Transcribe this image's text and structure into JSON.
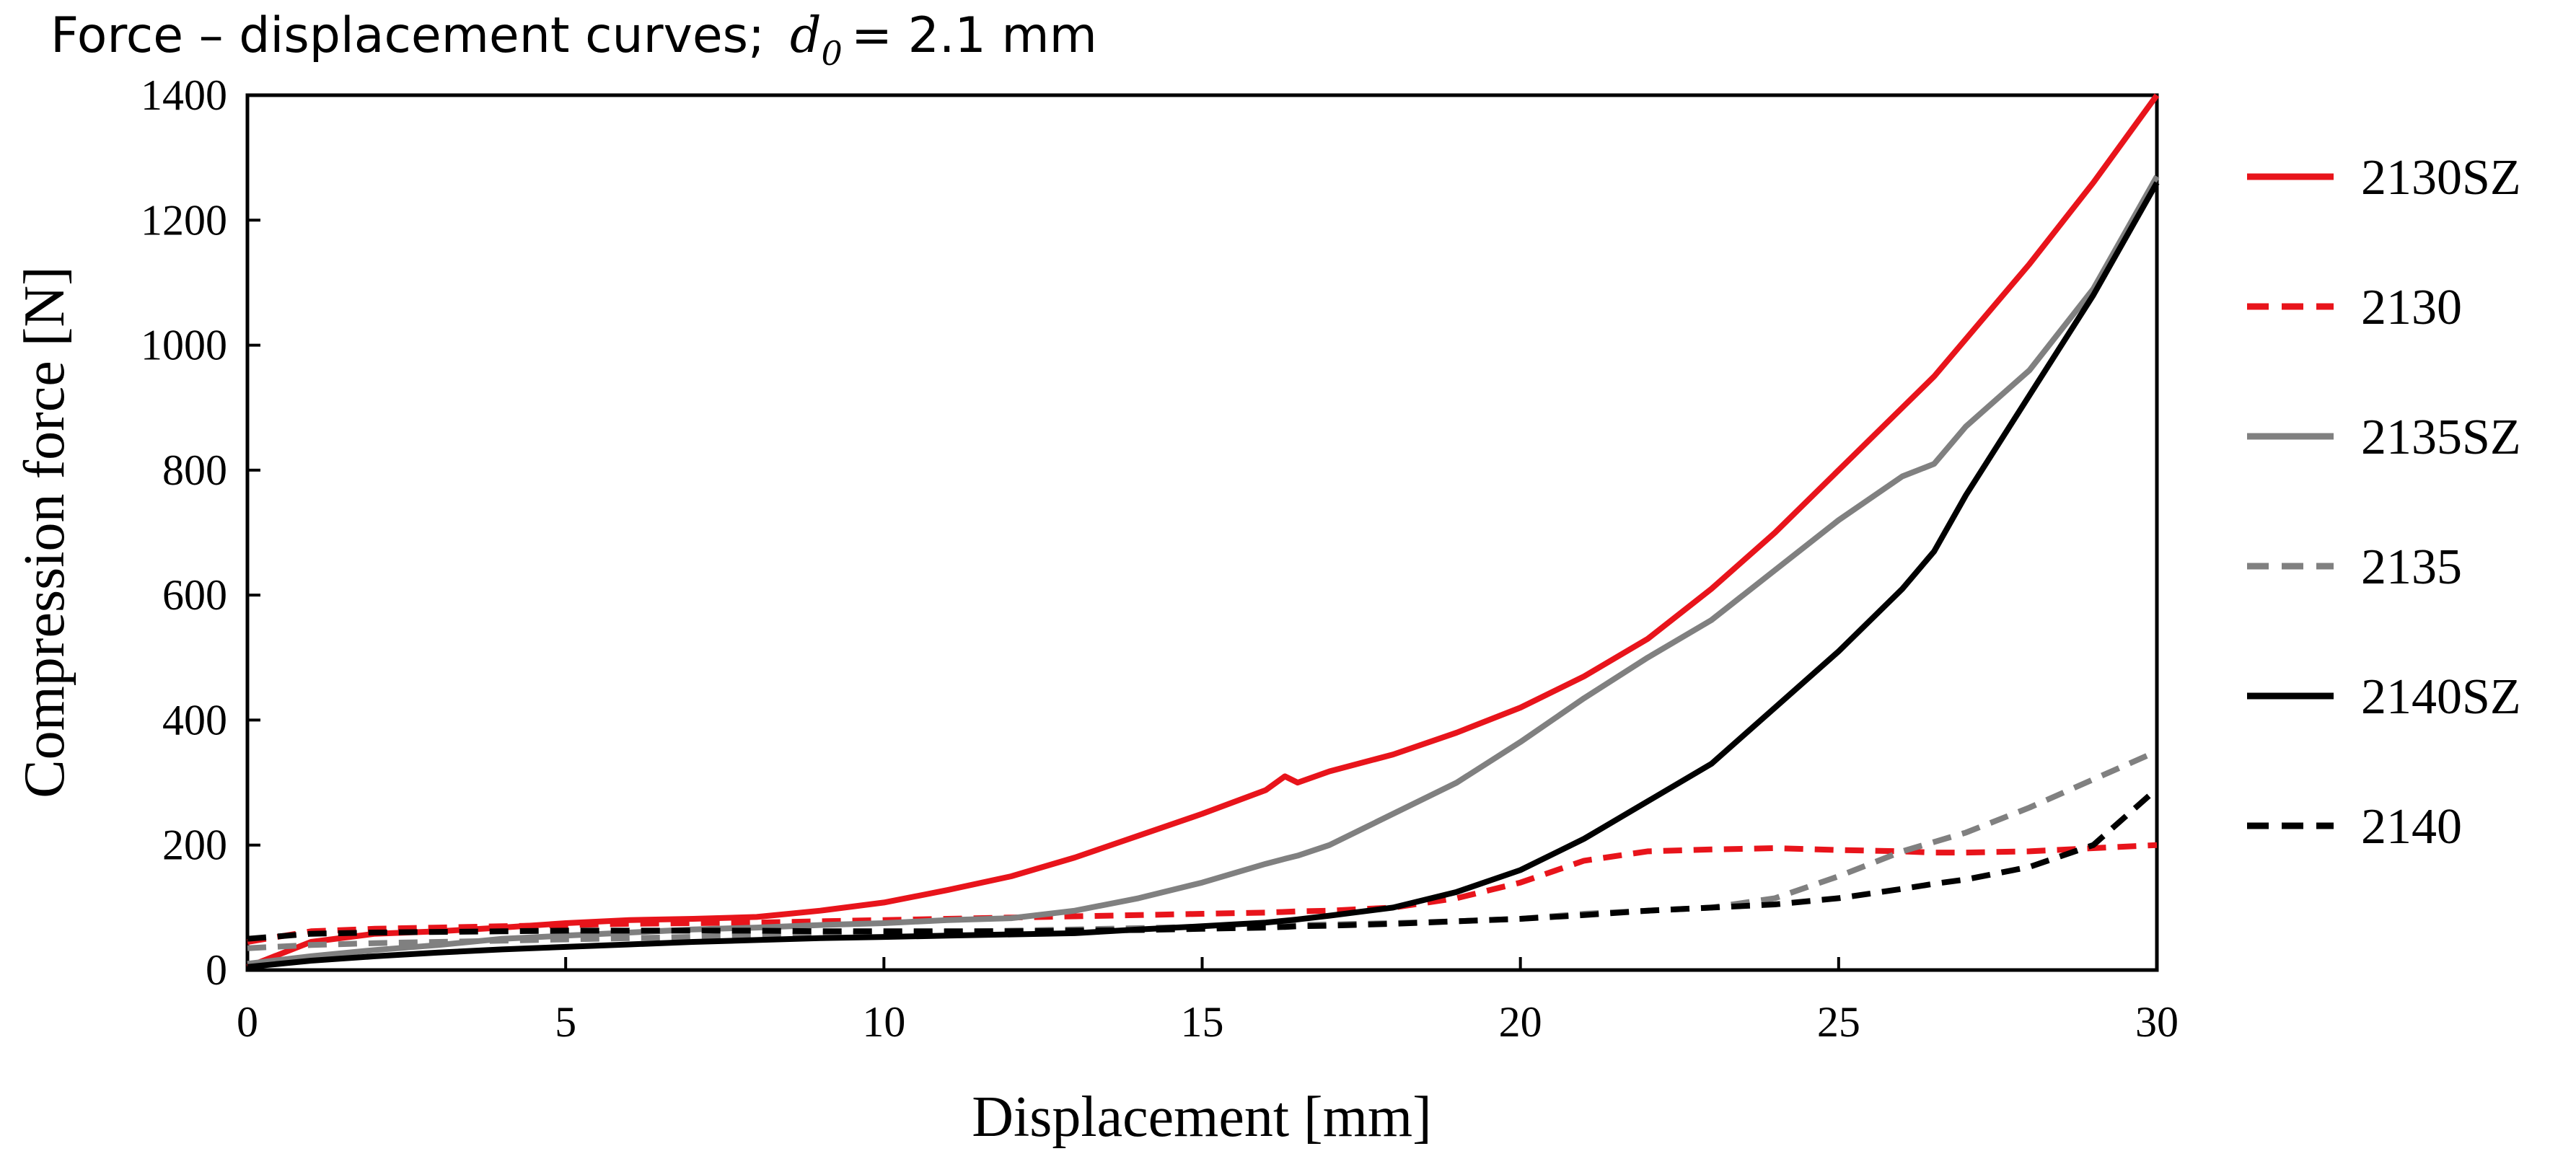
{
  "chart_data": {
    "type": "line",
    "title": {
      "prefix": "Force – displacement curves;",
      "symbol": "d",
      "subscript": "0",
      "equation": "= 2.1 mm"
    },
    "xlabel": "Displacement [mm]",
    "ylabel": "Compression force [N]",
    "xlim": [
      0,
      30
    ],
    "ylim": [
      0,
      1400
    ],
    "xticks": [
      0,
      5,
      10,
      15,
      20,
      25,
      30
    ],
    "yticks": [
      0,
      200,
      400,
      600,
      800,
      1000,
      1200,
      1400
    ],
    "grid": false,
    "legend_position": "right",
    "x": [
      0,
      1,
      2,
      3,
      4,
      5,
      6,
      7,
      8,
      9,
      10,
      11,
      12,
      13,
      14,
      15,
      16,
      16.3,
      16.5,
      17,
      18,
      19,
      20,
      21,
      22,
      23,
      24,
      25,
      26,
      26.5,
      27,
      28,
      29,
      30
    ],
    "series": [
      {
        "name": "2130SZ",
        "color": "#e8141b",
        "dash": "solid",
        "values": [
          5,
          45,
          58,
          62,
          68,
          75,
          80,
          82,
          85,
          95,
          108,
          128,
          150,
          180,
          215,
          250,
          288,
          310,
          300,
          318,
          345,
          380,
          420,
          470,
          530,
          610,
          700,
          800,
          900,
          950,
          1010,
          1130,
          1260,
          1400
        ]
      },
      {
        "name": "2130",
        "color": "#e8141b",
        "dash": "dashed",
        "values": [
          45,
          62,
          66,
          68,
          70,
          72,
          74,
          75,
          76,
          78,
          80,
          82,
          84,
          86,
          88,
          90,
          92,
          93,
          94,
          95,
          100,
          115,
          140,
          175,
          190,
          193,
          195,
          192,
          190,
          188,
          188,
          190,
          195,
          200
        ]
      },
      {
        "name": "2135SZ",
        "color": "#808080",
        "dash": "solid",
        "values": [
          10,
          22,
          32,
          40,
          50,
          55,
          60,
          65,
          68,
          72,
          75,
          80,
          83,
          95,
          115,
          140,
          170,
          178,
          183,
          200,
          250,
          300,
          365,
          435,
          500,
          560,
          640,
          720,
          790,
          810,
          870,
          960,
          1090,
          1270
        ]
      },
      {
        "name": "2135",
        "color": "#808080",
        "dash": "dashed",
        "values": [
          35,
          40,
          43,
          45,
          47,
          49,
          51,
          53,
          55,
          57,
          59,
          61,
          63,
          65,
          67,
          69,
          71,
          72,
          72,
          73,
          75,
          78,
          82,
          90,
          95,
          100,
          115,
          150,
          190,
          205,
          220,
          260,
          305,
          350
        ]
      },
      {
        "name": "2140SZ",
        "color": "#000000",
        "dash": "solid",
        "values": [
          5,
          15,
          22,
          28,
          33,
          37,
          41,
          45,
          48,
          51,
          53,
          55,
          57,
          59,
          65,
          70,
          76,
          79,
          81,
          87,
          100,
          125,
          160,
          210,
          270,
          330,
          420,
          510,
          610,
          670,
          760,
          920,
          1080,
          1260
        ]
      },
      {
        "name": "2140",
        "color": "#000000",
        "dash": "dashed",
        "values": [
          50,
          58,
          60,
          61,
          62,
          63,
          63,
          63,
          63,
          62,
          62,
          62,
          62,
          63,
          64,
          66,
          68,
          69,
          70,
          71,
          74,
          78,
          82,
          88,
          95,
          100,
          105,
          115,
          130,
          138,
          145,
          165,
          200,
          290
        ]
      }
    ]
  }
}
